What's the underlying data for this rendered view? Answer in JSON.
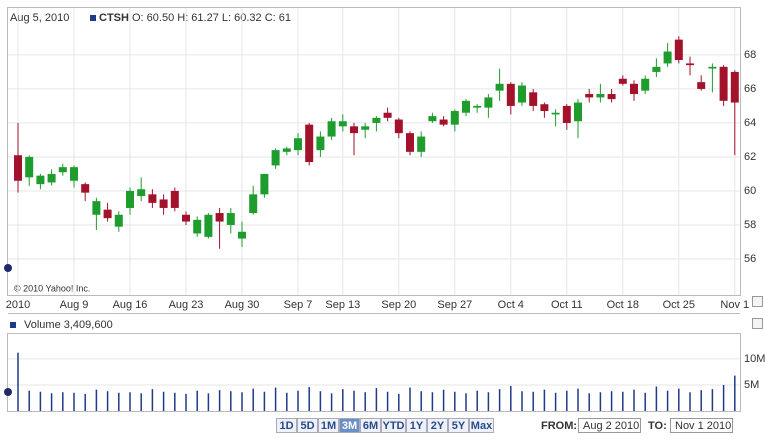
{
  "header": {
    "date": "Aug 5, 2010",
    "symbol": "CTSH",
    "quote": "O: 60.50 H: 61.27 L: 60.32 C: 61",
    "volume": "Volume 3,409,600",
    "copyright": "© 2010 Yahoo! Inc."
  },
  "controls": {
    "ranges": [
      "1D",
      "5D",
      "1M",
      "3M",
      "6M",
      "YTD",
      "1Y",
      "2Y",
      "5Y",
      "Max"
    ],
    "active": "3M",
    "from_label": "FROM:",
    "from": "Aug 2 2010",
    "to_label": "TO:",
    "to": "Nov 1 2010"
  },
  "chart_data": [
    {
      "type": "candlestick",
      "categories": [
        "2010",
        null,
        null,
        null,
        null,
        "Aug 9",
        null,
        null,
        null,
        null,
        "Aug 16",
        null,
        null,
        null,
        null,
        "Aug 23",
        null,
        null,
        null,
        null,
        "Aug 30",
        null,
        null,
        null,
        null,
        "Sep 7",
        null,
        null,
        null,
        "Sep 13",
        null,
        null,
        null,
        null,
        "Sep 20",
        null,
        null,
        null,
        null,
        "Sep 27",
        null,
        null,
        null,
        null,
        "Oct 4",
        null,
        null,
        null,
        null,
        "Oct 11",
        null,
        null,
        null,
        null,
        "Oct 18",
        null,
        null,
        null,
        null,
        "Oct 25",
        null,
        null,
        null,
        null,
        "Nov 1"
      ],
      "open": [
        62.1,
        60.8,
        60.4,
        60.5,
        61.1,
        60.6,
        60.4,
        58.6,
        58.9,
        57.9,
        59.0,
        59.7,
        59.8,
        59.5,
        60.0,
        58.6,
        57.5,
        57.3,
        58.7,
        58.0,
        57.2,
        58.7,
        59.8,
        61.5,
        62.3,
        62.4,
        63.9,
        62.4,
        63.2,
        63.8,
        63.8,
        63.6,
        64.0,
        64.6,
        64.2,
        63.4,
        62.3,
        64.1,
        64.2,
        63.9,
        64.6,
        64.9,
        64.9,
        65.9,
        66.3,
        65.2,
        65.8,
        65.1,
        64.5,
        65.0,
        64.1,
        65.7,
        65.5,
        65.7,
        66.6,
        66.3,
        65.9,
        67.0,
        67.5,
        68.9,
        67.5,
        66.4,
        67.2,
        67.3,
        67.0
      ],
      "high": [
        64.0,
        62.1,
        61.0,
        61.27,
        61.6,
        61.5,
        60.5,
        59.6,
        59.3,
        58.8,
        60.2,
        60.8,
        60.1,
        59.8,
        60.2,
        58.8,
        58.5,
        58.7,
        59.0,
        59.0,
        58.2,
        60.3,
        61.0,
        62.5,
        62.6,
        63.4,
        64.0,
        63.5,
        64.3,
        64.5,
        64.0,
        64.0,
        64.4,
        64.9,
        64.3,
        63.5,
        63.5,
        64.6,
        64.4,
        64.8,
        65.4,
        65.1,
        65.7,
        67.2,
        66.4,
        66.4,
        66.0,
        65.2,
        64.8,
        65.1,
        65.4,
        66.0,
        66.3,
        66.0,
        66.8,
        66.5,
        66.8,
        67.8,
        68.7,
        69.1,
        67.9,
        66.8,
        67.5,
        67.4,
        67.1
      ],
      "low": [
        59.9,
        60.3,
        60.1,
        60.32,
        60.9,
        60.2,
        59.4,
        57.7,
        58.2,
        57.6,
        58.6,
        59.4,
        59.0,
        58.6,
        58.8,
        58.0,
        57.3,
        57.2,
        56.6,
        57.5,
        56.7,
        58.6,
        59.6,
        61.3,
        62.1,
        62.1,
        61.5,
        62.0,
        63.0,
        63.5,
        62.1,
        63.1,
        63.5,
        64.1,
        63.1,
        62.1,
        62.0,
        64.0,
        63.8,
        63.5,
        64.4,
        64.6,
        64.3,
        65.3,
        64.5,
        65.0,
        64.7,
        64.3,
        63.8,
        63.6,
        63.1,
        65.2,
        65.2,
        65.2,
        66.2,
        65.3,
        65.7,
        66.7,
        67.3,
        67.5,
        66.8,
        65.9,
        65.8,
        65.0,
        62.1
      ],
      "close": [
        60.6,
        62.0,
        60.9,
        61,
        61.4,
        61.4,
        59.9,
        59.4,
        58.4,
        58.6,
        60.0,
        60.1,
        59.3,
        59.0,
        59.0,
        58.2,
        58.3,
        58.6,
        58.2,
        58.7,
        57.6,
        59.8,
        61.0,
        62.4,
        62.5,
        63.1,
        61.7,
        63.2,
        64.1,
        64.1,
        63.4,
        63.8,
        64.3,
        64.3,
        63.4,
        62.3,
        63.2,
        64.4,
        63.9,
        64.7,
        65.3,
        65.0,
        65.5,
        66.3,
        65.0,
        66.2,
        65.0,
        64.7,
        64.6,
        64.0,
        65.2,
        65.5,
        65.7,
        65.4,
        66.3,
        65.7,
        66.6,
        67.3,
        68.2,
        67.7,
        67.4,
        66.0,
        67.3,
        65.3,
        65.2
      ],
      "up_color": "#1e9c2e",
      "down_color": "#a3122b",
      "ylim": [
        53.88,
        70.76
      ],
      "yticks": [
        56,
        58,
        60,
        62,
        64,
        66,
        68
      ],
      "grid": true
    },
    {
      "type": "bar",
      "values": [
        11200000,
        3900000,
        3700000,
        3409600,
        3600000,
        3500000,
        3300000,
        4100000,
        3800000,
        3500000,
        3600000,
        3400000,
        4200000,
        3700000,
        3500000,
        3300000,
        3900000,
        3400000,
        4000000,
        3800000,
        3600000,
        4300000,
        3700000,
        4500000,
        3500000,
        3900000,
        4600000,
        3800000,
        3400000,
        4200000,
        3900000,
        3600000,
        4400000,
        3700000,
        3300000,
        4500000,
        3800000,
        3600000,
        4100000,
        3700000,
        3400000,
        3900000,
        3600000,
        4200000,
        4800000,
        3800000,
        3700000,
        4100000,
        3500000,
        3900000,
        4300000,
        3400000,
        3600000,
        3800000,
        3700000,
        4100000,
        3500000,
        4700000,
        3900000,
        4300000,
        3600000,
        4000000,
        4200000,
        5000000,
        6800000
      ],
      "color": "#1f3a8a",
      "ylim": [
        0,
        14400000
      ],
      "yticks": [
        {
          "value": 5000000,
          "label": "5M"
        },
        {
          "value": 10000000,
          "label": "10M"
        }
      ],
      "grid": true
    }
  ]
}
